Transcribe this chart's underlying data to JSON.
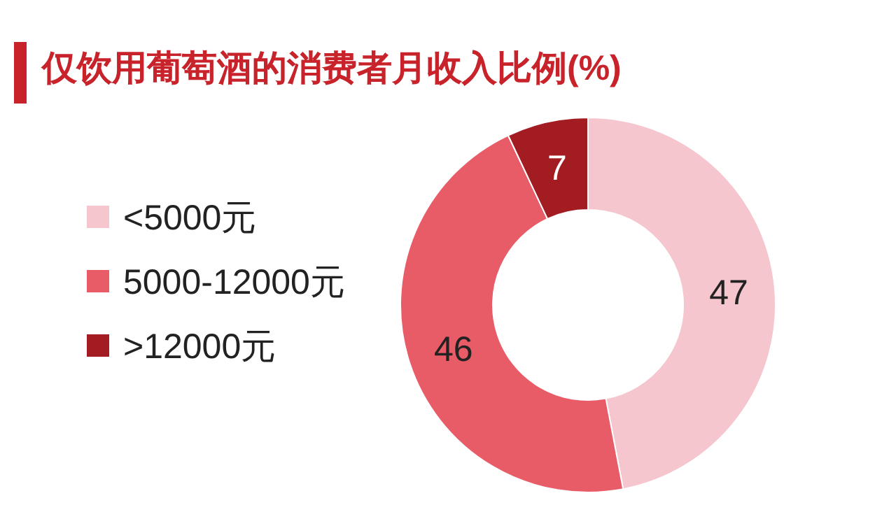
{
  "chart_data": {
    "type": "donut",
    "title": "仅饮用葡萄酒的消费者月收入比例(%)",
    "categories": [
      "<5000元",
      "5000-12000元",
      ">12000元"
    ],
    "values": [
      47,
      46,
      7
    ],
    "colors": [
      "#f5c6ce",
      "#e85c68",
      "#a31c22"
    ],
    "data_labels": true,
    "legend": "left"
  }
}
